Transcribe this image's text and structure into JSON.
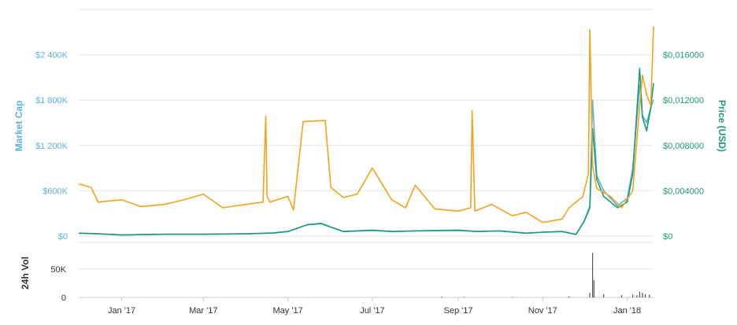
{
  "chart_data": {
    "type": "line",
    "colors": {
      "market_cap": "#5bb3d8",
      "price": "#1a9a7c",
      "btc_price": "#f4a21c",
      "volume": "#555555",
      "left_axis_text": "#5bb3d8",
      "right_axis_text": "#1a9a7c",
      "grid": "#e6e6e6",
      "axis_text": "#333333"
    },
    "x_axis": {
      "range": [
        "2016-12-01",
        "2018-01-20"
      ],
      "tick_labels": [
        {
          "label": "Jan '17",
          "date": "2017-01-01"
        },
        {
          "label": "Mar '17",
          "date": "2017-03-01"
        },
        {
          "label": "May '17",
          "date": "2017-05-01"
        },
        {
          "label": "Jul '17",
          "date": "2017-07-01"
        },
        {
          "label": "Sep '17",
          "date": "2017-09-01"
        },
        {
          "label": "Nov '17",
          "date": "2017-11-01"
        },
        {
          "label": "Jan '18",
          "date": "2018-01-01"
        }
      ]
    },
    "left_axis": {
      "title": "Market Cap",
      "range": [
        0,
        3000000
      ],
      "ticks": [
        {
          "label": "$0",
          "value": 0
        },
        {
          "label": "$600K",
          "value": 600000
        },
        {
          "label": "$1 200K",
          "value": 1200000
        },
        {
          "label": "$1 800K",
          "value": 1800000
        },
        {
          "label": "$2 400K",
          "value": 2400000
        }
      ]
    },
    "right_axis": {
      "title": "Price (USD)",
      "range": [
        0,
        0.02
      ],
      "ticks": [
        {
          "label": "$0",
          "value": 0
        },
        {
          "label": "$0,004000",
          "value": 0.004
        },
        {
          "label": "$0,008000",
          "value": 0.008
        },
        {
          "label": "$0,012000",
          "value": 0.012
        },
        {
          "label": "$0,016000",
          "value": 0.016
        }
      ]
    },
    "volume_axis": {
      "title": "24h Vol",
      "range": [
        0,
        80000
      ],
      "ticks": [
        {
          "label": "0",
          "value": 0
        },
        {
          "label": "50K",
          "value": 50000
        }
      ]
    },
    "series": [
      {
        "key": "market_cap",
        "x": [
          "2016-12-01",
          "2016-12-15",
          "2017-01-01",
          "2017-02-01",
          "2017-03-01",
          "2017-04-01",
          "2017-04-20",
          "2017-05-01",
          "2017-05-15",
          "2017-05-25",
          "2017-06-10",
          "2017-07-01",
          "2017-07-15",
          "2017-08-01",
          "2017-09-01",
          "2017-09-15",
          "2017-10-01",
          "2017-10-20",
          "2017-11-01",
          "2017-11-15",
          "2017-11-25",
          "2017-12-01",
          "2017-12-05",
          "2017-12-07",
          "2017-12-10",
          "2017-12-15",
          "2017-12-25",
          "2018-01-01",
          "2018-01-05",
          "2018-01-10",
          "2018-01-12",
          "2018-01-15",
          "2018-01-18",
          "2018-01-20"
        ],
        "values": [
          40000,
          30000,
          15000,
          25000,
          25000,
          30000,
          40000,
          60000,
          150000,
          170000,
          60000,
          80000,
          60000,
          70000,
          80000,
          60000,
          70000,
          40000,
          50000,
          60000,
          20000,
          200000,
          400000,
          1800000,
          800000,
          600000,
          400000,
          500000,
          900000,
          2000000,
          1600000,
          1500000,
          1700000,
          1800000
        ]
      },
      {
        "key": "price",
        "x": [
          "2016-12-01",
          "2016-12-15",
          "2017-01-01",
          "2017-02-01",
          "2017-03-01",
          "2017-04-01",
          "2017-04-20",
          "2017-05-01",
          "2017-05-15",
          "2017-05-25",
          "2017-06-10",
          "2017-07-01",
          "2017-07-15",
          "2017-08-01",
          "2017-09-01",
          "2017-09-15",
          "2017-10-01",
          "2017-10-20",
          "2017-11-01",
          "2017-11-15",
          "2017-11-25",
          "2017-12-01",
          "2017-12-05",
          "2017-12-07",
          "2017-12-10",
          "2017-12-15",
          "2017-12-25",
          "2018-01-01",
          "2018-01-05",
          "2018-01-10",
          "2018-01-12",
          "2018-01-15",
          "2018-01-18",
          "2018-01-20"
        ],
        "values": [
          0.00025,
          0.0002,
          0.0001,
          0.00016,
          0.00016,
          0.0002,
          0.00027,
          0.0004,
          0.001,
          0.0011,
          0.0004,
          0.0005,
          0.0004,
          0.00045,
          0.0005,
          0.0004,
          0.00045,
          0.00025,
          0.00035,
          0.0004,
          0.00015,
          0.0013,
          0.0025,
          0.0095,
          0.005,
          0.0035,
          0.0025,
          0.003,
          0.0055,
          0.0148,
          0.0105,
          0.0093,
          0.0113,
          0.0135
        ]
      },
      {
        "key": "btc_price",
        "x": [
          "2016-12-01",
          "2016-12-10",
          "2016-12-15",
          "2017-01-01",
          "2017-01-15",
          "2017-02-01",
          "2017-02-15",
          "2017-03-01",
          "2017-03-15",
          "2017-04-01",
          "2017-04-13",
          "2017-04-15",
          "2017-04-16",
          "2017-04-18",
          "2017-05-01",
          "2017-05-05",
          "2017-05-12",
          "2017-05-28",
          "2017-06-01",
          "2017-06-10",
          "2017-06-20",
          "2017-07-01",
          "2017-07-15",
          "2017-07-25",
          "2017-08-01",
          "2017-08-15",
          "2017-09-01",
          "2017-09-10",
          "2017-09-11",
          "2017-09-13",
          "2017-09-25",
          "2017-10-10",
          "2017-10-20",
          "2017-11-01",
          "2017-11-15",
          "2017-11-20",
          "2017-11-30",
          "2017-12-04",
          "2017-12-05",
          "2017-12-07",
          "2017-12-10",
          "2017-12-20",
          "2017-12-28",
          "2018-01-05",
          "2018-01-10",
          "2018-01-12",
          "2018-01-15",
          "2018-01-18",
          "2018-01-20"
        ],
        "values": [
          0.0046,
          0.0043,
          0.003,
          0.0032,
          0.0026,
          0.0028,
          0.0032,
          0.0037,
          0.0025,
          0.0028,
          0.003,
          0.0106,
          0.0035,
          0.003,
          0.0035,
          0.0023,
          0.0101,
          0.0102,
          0.0043,
          0.0034,
          0.0037,
          0.006,
          0.0032,
          0.0025,
          0.0045,
          0.0024,
          0.0022,
          0.0025,
          0.0111,
          0.0022,
          0.0028,
          0.0018,
          0.0021,
          0.0012,
          0.0015,
          0.0025,
          0.0035,
          0.0055,
          0.0182,
          0.0062,
          0.0042,
          0.0035,
          0.0025,
          0.004,
          0.0115,
          0.0142,
          0.0125,
          0.0115,
          0.0185
        ]
      }
    ],
    "volume": {
      "x": [
        "2017-08-20",
        "2017-09-05",
        "2017-10-10",
        "2017-11-20",
        "2017-12-05",
        "2017-12-07",
        "2017-12-08",
        "2017-12-15",
        "2017-12-28",
        "2018-01-05",
        "2018-01-08",
        "2018-01-10",
        "2018-01-12",
        "2018-01-14",
        "2018-01-17"
      ],
      "values": [
        1500,
        1200,
        1000,
        2000,
        8000,
        78000,
        30000,
        6000,
        4000,
        5000,
        4000,
        10000,
        8000,
        6000,
        5000
      ]
    }
  }
}
